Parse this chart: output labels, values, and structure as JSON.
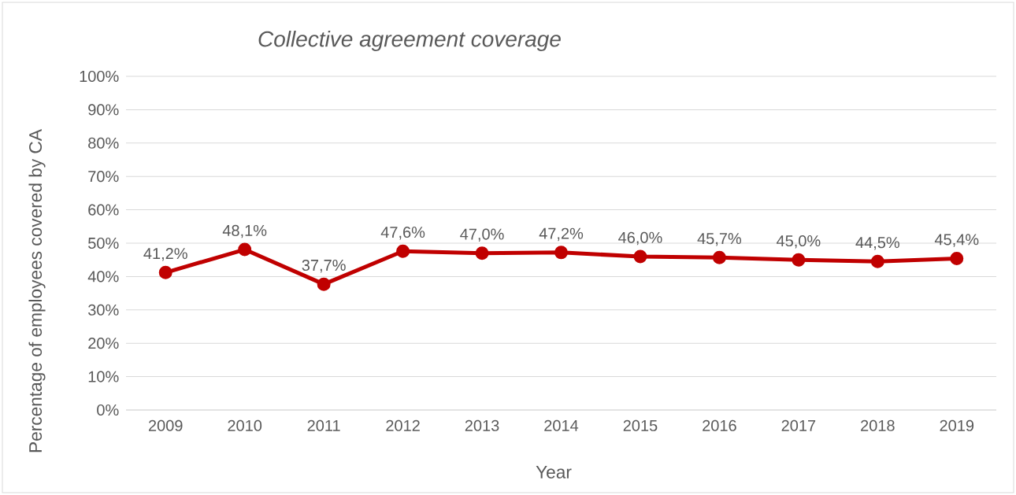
{
  "chart_data": {
    "type": "line",
    "title": "Collective agreement coverage",
    "xlabel": "Year",
    "ylabel": "Percentage of employees covered by CA",
    "categories": [
      "2009",
      "2010",
      "2011",
      "2012",
      "2013",
      "2014",
      "2015",
      "2016",
      "2017",
      "2018",
      "2019"
    ],
    "series": [
      {
        "color": "#c00000",
        "values": [
          41.2,
          48.1,
          37.7,
          47.6,
          47.0,
          47.2,
          46.0,
          45.7,
          45.0,
          44.5,
          45.4
        ],
        "value_labels": [
          "41,2%",
          "48,1%",
          "37,7%",
          "47,6%",
          "47,0%",
          "47,2%",
          "46,0%",
          "45,7%",
          "45,0%",
          "44,5%",
          "45,4%"
        ]
      }
    ],
    "ylim": [
      0,
      100
    ],
    "yticks": [
      {
        "value": 0,
        "label": "0%"
      },
      {
        "value": 10,
        "label": "10%"
      },
      {
        "value": 20,
        "label": "20%"
      },
      {
        "value": 30,
        "label": "30%"
      },
      {
        "value": 40,
        "label": "40%"
      },
      {
        "value": 50,
        "label": "50%"
      },
      {
        "value": 60,
        "label": "60%"
      },
      {
        "value": 70,
        "label": "70%"
      },
      {
        "value": 80,
        "label": "80%"
      },
      {
        "value": 90,
        "label": "90%"
      },
      {
        "value": 100,
        "label": "100%"
      }
    ],
    "grid": "y",
    "marker": "circle",
    "line_style": "solid"
  }
}
